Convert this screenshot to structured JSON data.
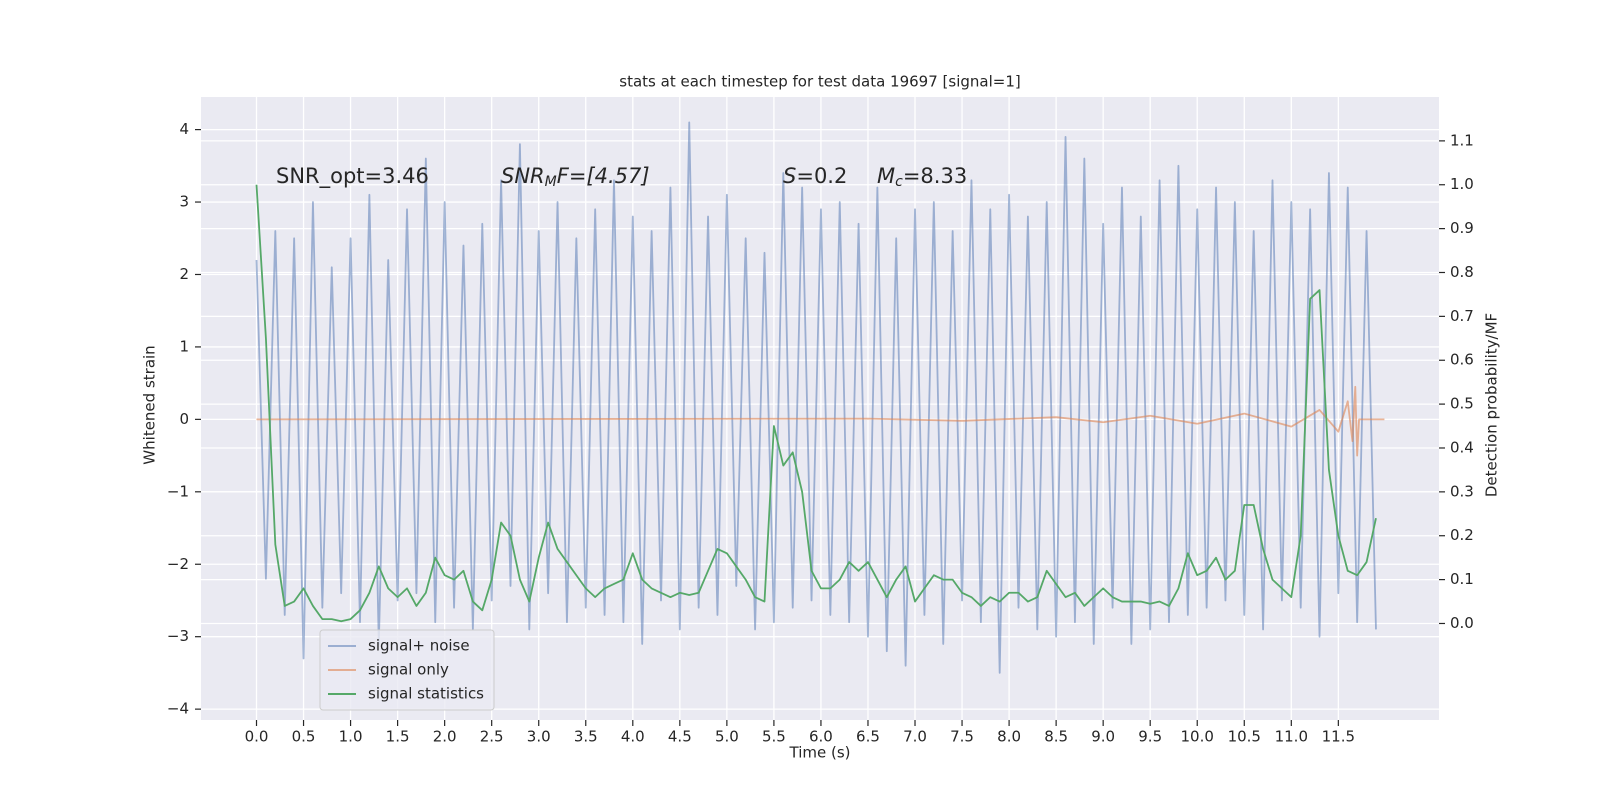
{
  "chart_data": {
    "type": "line",
    "title": "stats at each timestep for test data 19697 [signal=1]",
    "xlabel": "Time (s)",
    "ylabel": "Whitened strain",
    "y2label": "Detection probability/MF",
    "annotations": [
      [
        "SNR_opt=3.46"
      ],
      [
        "SNR",
        "M",
        "F=[4.57]"
      ],
      [
        "S",
        "=0.2"
      ],
      [
        "M",
        "c",
        "=8.33"
      ]
    ],
    "x": [
      0.0,
      0.1,
      0.2,
      0.3,
      0.4,
      0.5,
      0.6,
      0.7,
      0.8,
      0.9,
      1.0,
      1.1,
      1.2,
      1.3,
      1.4,
      1.5,
      1.6,
      1.7,
      1.8,
      1.9,
      2.0,
      2.1,
      2.2,
      2.3,
      2.4,
      2.5,
      2.6,
      2.7,
      2.8,
      2.9,
      3.0,
      3.1,
      3.2,
      3.3,
      3.4,
      3.5,
      3.6,
      3.7,
      3.8,
      3.9,
      4.0,
      4.1,
      4.2,
      4.3,
      4.4,
      4.5,
      4.6,
      4.7,
      4.8,
      4.9,
      5.0,
      5.1,
      5.2,
      5.3,
      5.4,
      5.5,
      5.6,
      5.7,
      5.8,
      5.9,
      6.0,
      6.1,
      6.2,
      6.3,
      6.4,
      6.5,
      6.6,
      6.7,
      6.8,
      6.9,
      7.0,
      7.1,
      7.2,
      7.3,
      7.4,
      7.5,
      7.6,
      7.7,
      7.8,
      7.9,
      8.0,
      8.1,
      8.2,
      8.3,
      8.4,
      8.5,
      8.6,
      8.7,
      8.8,
      8.9,
      9.0,
      9.1,
      9.2,
      9.3,
      9.4,
      9.5,
      9.6,
      9.7,
      9.8,
      9.9,
      10.0,
      10.1,
      10.2,
      10.3,
      10.4,
      10.5,
      10.6,
      10.7,
      10.8,
      10.9,
      11.0,
      11.1,
      11.2,
      11.3,
      11.4,
      11.5,
      11.6,
      11.7,
      11.8,
      11.9
    ],
    "series": [
      {
        "name": "signal+ noise",
        "color": "#4c72b0",
        "alpha": 0.5,
        "values": [
          2.2,
          -2.2,
          2.6,
          -2.7,
          2.5,
          -3.3,
          3.0,
          -2.6,
          2.1,
          -2.4,
          2.5,
          -2.8,
          3.1,
          -3.1,
          2.2,
          -2.5,
          2.9,
          -2.4,
          3.6,
          -2.8,
          3.0,
          -2.6,
          2.4,
          -2.9,
          2.7,
          -2.5,
          3.3,
          -2.3,
          3.8,
          -2.9,
          2.6,
          -2.4,
          3.0,
          -2.8,
          2.5,
          -2.6,
          2.9,
          -2.7,
          3.3,
          -2.8,
          2.8,
          -3.1,
          2.6,
          -2.5,
          3.2,
          -2.9,
          4.1,
          -2.6,
          2.8,
          -2.7,
          3.1,
          -2.3,
          2.5,
          -2.9,
          2.3,
          -2.8,
          3.4,
          -2.6,
          3.2,
          -2.5,
          2.9,
          -2.7,
          3.0,
          -2.8,
          2.7,
          -3.0,
          3.2,
          -3.2,
          2.5,
          -3.4,
          2.9,
          -2.7,
          3.0,
          -3.1,
          2.6,
          -2.5,
          3.3,
          -2.8,
          2.9,
          -3.5,
          3.1,
          -2.6,
          2.8,
          -2.9,
          3.0,
          -3.0,
          3.9,
          -2.8,
          3.6,
          -3.1,
          2.7,
          -2.6,
          3.2,
          -3.1,
          2.8,
          -2.9,
          3.3,
          -2.8,
          3.5,
          -2.7,
          2.9,
          -2.6,
          3.2,
          -2.5,
          3.0,
          -2.7,
          2.6,
          -2.9,
          3.3,
          -2.5,
          3.0,
          -2.6,
          2.9,
          -3.0,
          3.4,
          -2.4,
          3.2,
          -2.8,
          2.6,
          -2.9
        ]
      },
      {
        "name": "signal only",
        "color": "#dd8452",
        "alpha": 0.6,
        "x": [
          0.0,
          6.5,
          7.5,
          8.5,
          9.0,
          9.5,
          10.0,
          10.5,
          11.0,
          11.3,
          11.5,
          11.6,
          11.65,
          11.68,
          11.7,
          11.72,
          11.99
        ],
        "values": [
          0,
          0.01,
          -0.02,
          0.03,
          -0.04,
          0.05,
          -0.06,
          0.08,
          -0.1,
          0.13,
          -0.17,
          0.25,
          -0.3,
          0.45,
          -0.5,
          0,
          0
        ]
      },
      {
        "name": "signal statistics",
        "color": "#55a868",
        "alpha": 1,
        "axis": "y2",
        "values": [
          1.0,
          0.65,
          0.18,
          0.04,
          0.05,
          0.08,
          0.04,
          0.01,
          0.01,
          0.005,
          0.01,
          0.03,
          0.07,
          0.13,
          0.08,
          0.06,
          0.08,
          0.04,
          0.07,
          0.15,
          0.11,
          0.1,
          0.12,
          0.05,
          0.03,
          0.1,
          0.23,
          0.2,
          0.1,
          0.05,
          0.15,
          0.23,
          0.17,
          0.14,
          0.11,
          0.08,
          0.06,
          0.08,
          0.09,
          0.1,
          0.16,
          0.1,
          0.08,
          0.07,
          0.06,
          0.07,
          0.065,
          0.07,
          0.12,
          0.17,
          0.16,
          0.13,
          0.1,
          0.06,
          0.05,
          0.45,
          0.36,
          0.39,
          0.3,
          0.12,
          0.08,
          0.08,
          0.1,
          0.14,
          0.12,
          0.14,
          0.1,
          0.06,
          0.1,
          0.13,
          0.05,
          0.08,
          0.11,
          0.1,
          0.1,
          0.07,
          0.06,
          0.04,
          0.06,
          0.05,
          0.07,
          0.07,
          0.05,
          0.06,
          0.12,
          0.09,
          0.06,
          0.07,
          0.04,
          0.06,
          0.08,
          0.06,
          0.05,
          0.05,
          0.05,
          0.045,
          0.05,
          0.04,
          0.08,
          0.16,
          0.11,
          0.12,
          0.15,
          0.1,
          0.12,
          0.27,
          0.27,
          0.17,
          0.1,
          0.08,
          0.06,
          0.2,
          0.74,
          0.76,
          0.35,
          0.2,
          0.12,
          0.11,
          0.14,
          0.24
        ]
      }
    ],
    "xlim": [
      -0.59,
      12.57
    ],
    "xticks": [
      {
        "value": 0,
        "label": "0.0"
      },
      0.5,
      {
        "value": 1,
        "label": "1.0"
      },
      1.5,
      {
        "value": 2,
        "label": "2.0"
      },
      2.5,
      {
        "value": 3,
        "label": "3.0"
      },
      3.5,
      {
        "value": 4,
        "label": "4.0"
      },
      4.5,
      {
        "value": 5,
        "label": "5.0"
      },
      5.5,
      {
        "value": 6,
        "label": "6.0"
      },
      6.5,
      {
        "value": 7,
        "label": "7.0"
      },
      7.5,
      {
        "value": 8,
        "label": "8.0"
      },
      8.5,
      {
        "value": 9,
        "label": "9.0"
      },
      9.5,
      {
        "value": 10,
        "label": "10.0"
      },
      10.5,
      {
        "value": 11,
        "label": "11.0"
      },
      11.5
    ],
    "ylim": [
      -4.15,
      4.45
    ],
    "yticks": [
      {
        "value": -4,
        "label": "−4"
      },
      {
        "value": -3,
        "label": "−3"
      },
      {
        "value": -2,
        "label": "−2"
      },
      {
        "value": -1,
        "label": "−1"
      },
      0,
      1,
      2,
      3,
      4
    ],
    "y2lim": [
      -0.22,
      1.2
    ],
    "y2ticks": [
      {
        "value": 0,
        "label": "0.0"
      },
      0.1,
      0.2,
      0.3,
      0.4,
      0.5,
      0.6,
      0.7,
      0.8,
      0.9,
      {
        "value": 1,
        "label": "1.0"
      },
      1.1
    ],
    "grid": true,
    "legend": "lower left"
  }
}
